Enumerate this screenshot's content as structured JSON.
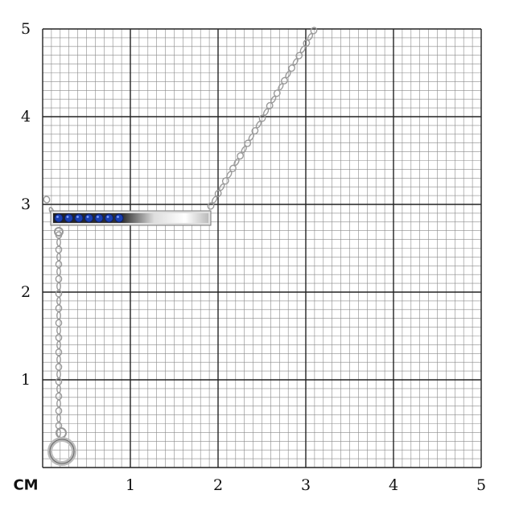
{
  "scale": {
    "unit_label": "CM",
    "x_ticks": [
      "1",
      "2",
      "3",
      "4",
      "5"
    ],
    "y_ticks": [
      "1",
      "2",
      "3",
      "4",
      "5"
    ],
    "minor_divisions_per_unit": 10
  },
  "product": {
    "type": "bar necklace with chain and ring clasp",
    "metal_color": "#c8c8c8",
    "stone_color": "#1a3fb0",
    "stone_count": 7
  },
  "colors": {
    "grid_major": "#222222",
    "grid_minor": "#8a8a8a",
    "background": "#ffffff"
  }
}
